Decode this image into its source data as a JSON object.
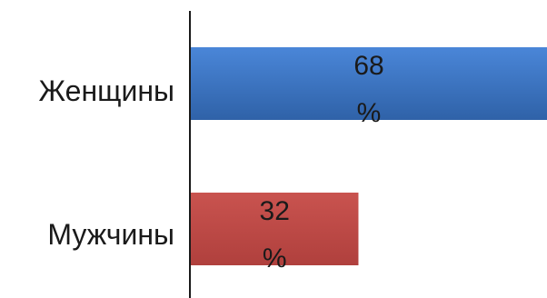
{
  "chart_data": {
    "type": "bar",
    "orientation": "horizontal",
    "categories": [
      "Женщины",
      "Мужчины"
    ],
    "values": [
      68,
      32
    ],
    "data_labels": [
      {
        "value": "68",
        "unit": "%"
      },
      {
        "value": "32",
        "unit": "%"
      }
    ],
    "colors": [
      "#3d78c8",
      "#c0504d"
    ],
    "title": "",
    "xlabel": "",
    "ylabel": "",
    "xlim": [
      0,
      68
    ],
    "grid": false,
    "legend": "none"
  }
}
